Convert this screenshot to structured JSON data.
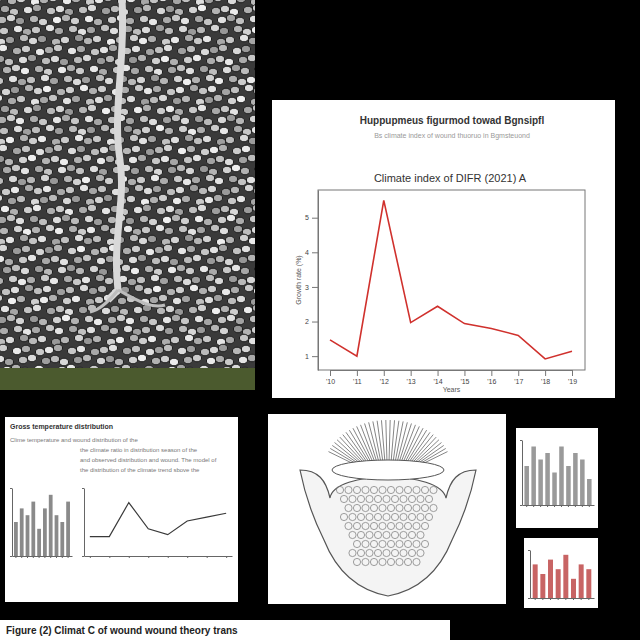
{
  "chart_data": [
    {
      "type": "line",
      "header": "Huppupmeus figurmod towad Bgnsipfl",
      "subtitle": "Bs climate index of wound thuoruo in Bgmsteuond",
      "title": "Climate index of DIFR (2021) A",
      "y_label": "Growth rate (%)",
      "x_label": "Years",
      "categories": [
        "'10",
        "'11",
        "'12",
        "'13",
        "'14",
        "'15",
        "'16",
        "'17",
        "'18",
        "'19"
      ],
      "values": [
        1.47,
        1.0,
        5.5,
        1.97,
        2.44,
        1.94,
        1.8,
        1.6,
        0.92,
        1.14
      ],
      "color": "#d0312d",
      "ylim": [
        0.6,
        5.8
      ],
      "yticks": [
        1,
        2,
        3,
        4,
        5
      ],
      "grid": false
    },
    {
      "type": "line",
      "categories": [
        null,
        null,
        null,
        null,
        null,
        null,
        null,
        null
      ],
      "values": [
        2.0,
        2.0,
        5.5,
        2.8,
        2.2,
        3.6,
        4.0,
        4.4
      ],
      "color": "#3a3a3a",
      "ylim": [
        0,
        7
      ],
      "yticks": [
        0,
        7
      ],
      "tick_labels": false
    },
    {
      "type": "bar",
      "categories": [
        null,
        null,
        null,
        null,
        null,
        null,
        null,
        null,
        null,
        null
      ],
      "values": [
        5,
        7,
        6,
        8,
        4,
        7,
        9,
        6,
        5,
        8
      ],
      "color": "#8a8a8a",
      "ylim": [
        0,
        10
      ],
      "yticks": [
        0,
        10
      ],
      "tick_labels": false
    },
    {
      "type": "bar",
      "categories": [
        null,
        null,
        null,
        null,
        null,
        null,
        null,
        null,
        null,
        null
      ],
      "values": [
        6,
        9,
        7,
        8,
        5,
        9,
        6,
        8,
        7,
        4
      ],
      "color": "#9a9a9a",
      "ylim": [
        0,
        10
      ],
      "yticks": [
        0,
        10
      ],
      "tick_labels": false
    },
    {
      "type": "bar",
      "categories": [
        null,
        null,
        null,
        null,
        null,
        null,
        null,
        null
      ],
      "values": [
        7,
        5,
        8,
        6,
        9,
        4,
        7,
        6
      ],
      "color": "#c86464",
      "ylim": [
        0,
        10
      ],
      "yticks": [
        0,
        10
      ],
      "tick_labels": false
    }
  ],
  "document": {
    "title": "Gross temperature distribution",
    "lines": [
      "Clime temperature and wound distribution of the",
      "the climate ratio in distribution season of the",
      "and observed distribution and wound. The model of",
      "the distribution of the climate trend sbove the"
    ]
  },
  "caption": "Figure (2) Climat C of wound wound theory trans"
}
